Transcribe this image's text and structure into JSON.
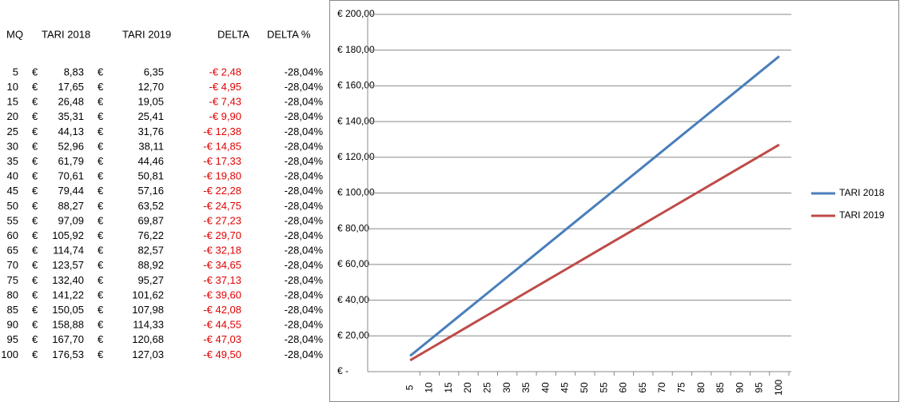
{
  "table": {
    "header": [
      "MQ",
      "TARI 2018",
      "TARI 2019",
      "DELTA",
      "DELTA %"
    ],
    "currency": "€",
    "rows": [
      [
        "5",
        "8,83",
        "6,35",
        "-€ 2,48",
        "-28,04%"
      ],
      [
        "10",
        "17,65",
        "12,70",
        "-€ 4,95",
        "-28,04%"
      ],
      [
        "15",
        "26,48",
        "19,05",
        "-€ 7,43",
        "-28,04%"
      ],
      [
        "20",
        "35,31",
        "25,41",
        "-€ 9,90",
        "-28,04%"
      ],
      [
        "25",
        "44,13",
        "31,76",
        "-€ 12,38",
        "-28,04%"
      ],
      [
        "30",
        "52,96",
        "38,11",
        "-€ 14,85",
        "-28,04%"
      ],
      [
        "35",
        "61,79",
        "44,46",
        "-€ 17,33",
        "-28,04%"
      ],
      [
        "40",
        "70,61",
        "50,81",
        "-€ 19,80",
        "-28,04%"
      ],
      [
        "45",
        "79,44",
        "57,16",
        "-€ 22,28",
        "-28,04%"
      ],
      [
        "50",
        "88,27",
        "63,52",
        "-€ 24,75",
        "-28,04%"
      ],
      [
        "55",
        "97,09",
        "69,87",
        "-€ 27,23",
        "-28,04%"
      ],
      [
        "60",
        "105,92",
        "76,22",
        "-€ 29,70",
        "-28,04%"
      ],
      [
        "65",
        "114,74",
        "82,57",
        "-€ 32,18",
        "-28,04%"
      ],
      [
        "70",
        "123,57",
        "88,92",
        "-€ 34,65",
        "-28,04%"
      ],
      [
        "75",
        "132,40",
        "95,27",
        "-€ 37,13",
        "-28,04%"
      ],
      [
        "80",
        "141,22",
        "101,62",
        "-€ 39,60",
        "-28,04%"
      ],
      [
        "85",
        "150,05",
        "107,98",
        "-€ 42,08",
        "-28,04%"
      ],
      [
        "90",
        "158,88",
        "114,33",
        "-€ 44,55",
        "-28,04%"
      ],
      [
        "95",
        "167,70",
        "120,68",
        "-€ 47,03",
        "-28,04%"
      ],
      [
        "100",
        "176,53",
        "127,03",
        "-€ 49,50",
        "-28,04%"
      ]
    ]
  },
  "chart_data": {
    "type": "line",
    "categories": [
      "5",
      "10",
      "15",
      "20",
      "25",
      "30",
      "35",
      "40",
      "45",
      "50",
      "55",
      "60",
      "65",
      "70",
      "75",
      "80",
      "85",
      "90",
      "95",
      "100"
    ],
    "series": [
      {
        "name": "TARI 2018",
        "color": "#4a7ebb",
        "values": [
          8.83,
          17.65,
          26.48,
          35.31,
          44.13,
          52.96,
          61.79,
          70.61,
          79.44,
          88.27,
          97.09,
          105.92,
          114.74,
          123.57,
          132.4,
          141.22,
          150.05,
          158.88,
          167.7,
          176.53
        ]
      },
      {
        "name": "TARI 2019",
        "color": "#be4b48",
        "values": [
          6.35,
          12.7,
          19.05,
          25.41,
          31.76,
          38.11,
          44.46,
          50.81,
          57.16,
          63.52,
          69.87,
          76.22,
          82.57,
          88.92,
          95.27,
          101.62,
          107.98,
          114.33,
          120.68,
          127.03
        ]
      }
    ],
    "ylim": [
      0,
      200
    ],
    "yticks": [
      {
        "value": 0,
        "label": "€ -"
      },
      {
        "value": 20,
        "label": "€ 20,00"
      },
      {
        "value": 40,
        "label": "€ 40,00"
      },
      {
        "value": 60,
        "label": "€ 60,00"
      },
      {
        "value": 80,
        "label": "€ 80,00"
      },
      {
        "value": 100,
        "label": "€ 100,00"
      },
      {
        "value": 120,
        "label": "€ 120,00"
      },
      {
        "value": 140,
        "label": "€ 140,00"
      },
      {
        "value": 160,
        "label": "€ 160,00"
      },
      {
        "value": 180,
        "label": "€ 180,00"
      },
      {
        "value": 200,
        "label": "€ 200,00"
      }
    ],
    "grid": true,
    "legend": "right"
  }
}
